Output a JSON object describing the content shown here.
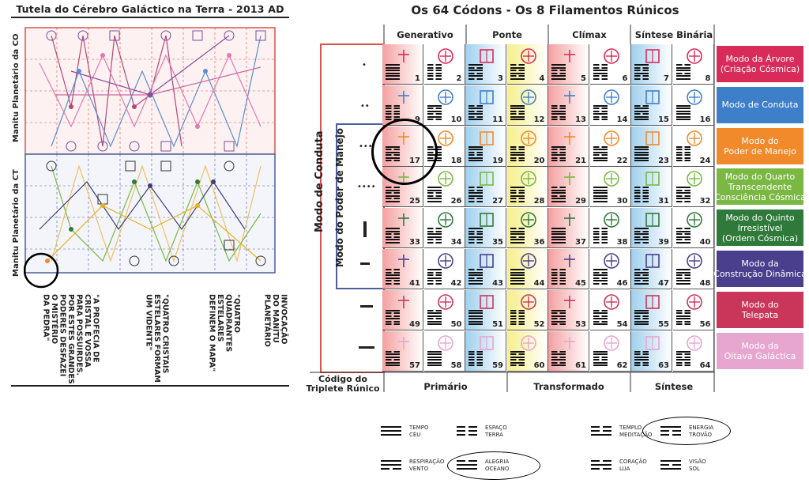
{
  "left_panel": {
    "title": "Tutela do Cérebro Galáctico na Terra - 2013 AD",
    "upper_side_label": "Manitu Planetário da CO",
    "lower_side_label": "Manitu Planetário da CT",
    "captions": [
      "\"A PROFECIA DE\nCRISTAL É VOSSA\nPARA POSSUIRDES.\nPOR ESTES GRANDES\nPODERES DESFAZEI\nO MISTÉRIO\nDA PEDRA\"",
      "\"QUATRO CRISTAIS\nESTELARES FORMAM\nUM VIDENTE\"",
      "\"QUATRO\nQUADRANTES\nESTELARES\nDEFINEM O MAPA\"",
      "INVOCAÇÃO\nDO MANITU\nPLANETÁRIO"
    ]
  },
  "right_panel": {
    "title": "Os 64 Códons - Os 8 Filamentos Rúnicos",
    "column_headers": [
      "Generativo",
      "Ponte",
      "Clímax",
      "Síntese Binária"
    ],
    "footer_labels": [
      "Primário",
      "Transformado",
      "Síntese"
    ],
    "side_label_outer": "Modo de Conduta",
    "side_label_inner": "Modo do Poder de Manejo",
    "row_codon_label": "Código do\nTriplete Rúnico",
    "modes": [
      {
        "label": "Modo da Árvore\n(Criação Cósmica)",
        "color": "#d92b5a"
      },
      {
        "label": "Modo de Conduta",
        "color": "#3d7fc9"
      },
      {
        "label": "Modo do\nPoder de Manejo",
        "color": "#f08a2b"
      },
      {
        "label": "Modo do Quarto\nTranscendente\n(Consciência Cósmica)",
        "color": "#7ab843"
      },
      {
        "label": "Modo do Quinto\nIrresistível\n(Ordem Cósmica)",
        "color": "#2f7a3a"
      },
      {
        "label": "Modo da\nConstrução Dinâmica",
        "color": "#4a3f8c"
      },
      {
        "label": "Modo do\nTelepata",
        "color": "#c9365a"
      },
      {
        "label": "Modo da\nOitava Galáctica",
        "color": "#e7a6cf"
      }
    ],
    "codon_numbers": [
      1,
      2,
      3,
      4,
      5,
      6,
      7,
      8,
      9,
      10,
      11,
      12,
      13,
      14,
      15,
      16,
      17,
      18,
      19,
      20,
      21,
      22,
      23,
      24,
      25,
      26,
      27,
      28,
      29,
      30,
      31,
      32,
      33,
      34,
      35,
      36,
      37,
      38,
      39,
      40,
      41,
      42,
      43,
      44,
      45,
      46,
      47,
      48,
      49,
      50,
      51,
      52,
      53,
      54,
      55,
      56,
      57,
      58,
      59,
      60,
      61,
      62,
      63,
      64
    ]
  },
  "legend": [
    {
      "line1": "TEMPO",
      "line2": "CÉU"
    },
    {
      "line1": "ESPAÇO",
      "line2": "TERRA"
    },
    {
      "line1": "TEMPLO",
      "line2": "MEDITAÇÃO"
    },
    {
      "line1": "ENERGIA",
      "line2": "TROVÃO"
    },
    {
      "line1": "RESPIRAÇÃO",
      "line2": "VENTO"
    },
    {
      "line1": "ALEGRIA",
      "line2": "OCEANO"
    },
    {
      "line1": "CORAÇÃO",
      "line2": "LUA"
    },
    {
      "line1": "VISÃO",
      "line2": "SOL"
    }
  ],
  "colors": {
    "red_band": "#f4a0a0",
    "blue_band": "#9fd0ee",
    "yellow_band": "#f7ef8a",
    "frame_red": "#d9534f",
    "frame_blue": "#4a5f9c"
  }
}
